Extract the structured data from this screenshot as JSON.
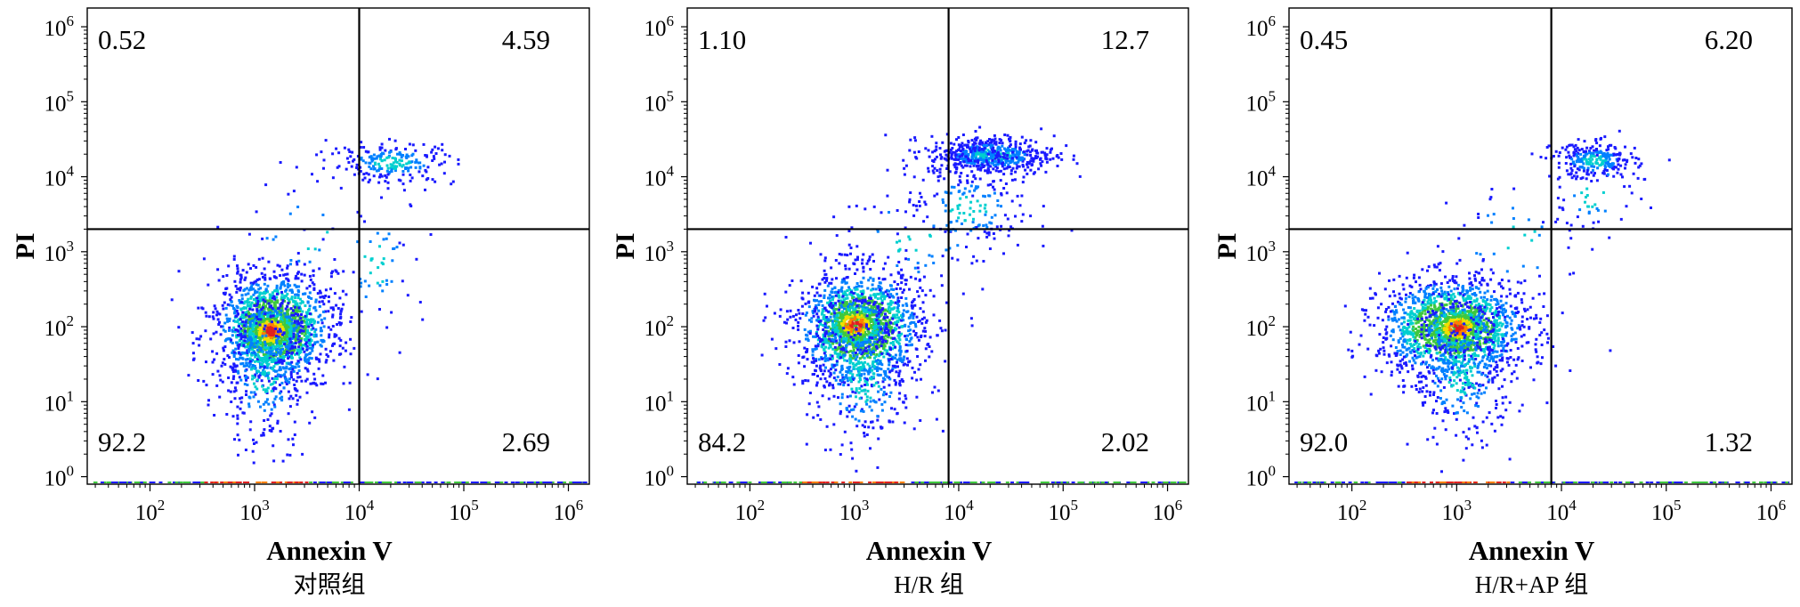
{
  "figure": {
    "y_axis_label": "PI",
    "x_axis_label": "Annexin V"
  },
  "chart_data": [
    {
      "type": "scatter",
      "subtitle": "对照组",
      "xlabel": "Annexin V",
      "ylabel": "PI",
      "x_scale": "log",
      "y_scale": "log",
      "x_ticks": [
        {
          "value": 100,
          "base": "10",
          "exp": "2"
        },
        {
          "value": 1000,
          "base": "10",
          "exp": "3"
        },
        {
          "value": 10000,
          "base": "10",
          "exp": "4"
        },
        {
          "value": 100000,
          "base": "10",
          "exp": "5"
        },
        {
          "value": 1000000,
          "base": "10",
          "exp": "6"
        }
      ],
      "y_ticks": [
        {
          "value": 1,
          "base": "10",
          "exp": "0"
        },
        {
          "value": 10,
          "base": "10",
          "exp": "1"
        },
        {
          "value": 100,
          "base": "10",
          "exp": "2"
        },
        {
          "value": 1000,
          "base": "10",
          "exp": "3"
        },
        {
          "value": 10000,
          "base": "10",
          "exp": "4"
        },
        {
          "value": 100000,
          "base": "10",
          "exp": "5"
        },
        {
          "value": 1000000,
          "base": "10",
          "exp": "6"
        }
      ],
      "quadrant_gate": {
        "x": 10000,
        "y": 2000
      },
      "quadrants": {
        "upper_left": "0.52",
        "upper_right": "4.59",
        "lower_left": "92.2",
        "lower_right": "2.69"
      },
      "colormap": [
        "#1a1aff",
        "#0080ff",
        "#00cfcf",
        "#3ec83e",
        "#f0e000",
        "#ff8000",
        "#e02020"
      ],
      "populations": [
        {
          "cx": 1500,
          "cy": 100,
          "sx": 0.28,
          "sy": 0.36,
          "n": 1500
        },
        {
          "cx": 1400,
          "cy": 90,
          "sx": 0.15,
          "sy": 0.17,
          "n": 500
        },
        {
          "cx": 1200,
          "cy": 25,
          "sx": 0.23,
          "sy": 0.5,
          "n": 320
        },
        {
          "cx": 20000,
          "cy": 16000,
          "sx": 0.3,
          "sy": 0.14,
          "n": 220
        },
        {
          "cx": 14000,
          "cy": 700,
          "sx": 0.25,
          "sy": 0.45,
          "n": 60
        },
        {
          "cx": 3000,
          "cy": 1800,
          "sx": 0.45,
          "sy": 0.4,
          "n": 30
        }
      ]
    },
    {
      "type": "scatter",
      "subtitle": "H/R 组",
      "xlabel": "Annexin V",
      "ylabel": "PI",
      "x_scale": "log",
      "y_scale": "log",
      "x_ticks": [
        {
          "value": 100,
          "base": "10",
          "exp": "2"
        },
        {
          "value": 1000,
          "base": "10",
          "exp": "3"
        },
        {
          "value": 10000,
          "base": "10",
          "exp": "4"
        },
        {
          "value": 100000,
          "base": "10",
          "exp": "5"
        },
        {
          "value": 1000000,
          "base": "10",
          "exp": "6"
        }
      ],
      "y_ticks": [
        {
          "value": 1,
          "base": "10",
          "exp": "0"
        },
        {
          "value": 10,
          "base": "10",
          "exp": "1"
        },
        {
          "value": 100,
          "base": "10",
          "exp": "2"
        },
        {
          "value": 1000,
          "base": "10",
          "exp": "3"
        },
        {
          "value": 10000,
          "base": "10",
          "exp": "4"
        },
        {
          "value": 100000,
          "base": "10",
          "exp": "5"
        },
        {
          "value": 1000000,
          "base": "10",
          "exp": "6"
        }
      ],
      "quadrant_gate": {
        "x": 8000,
        "y": 2000
      },
      "quadrants": {
        "upper_left": "1.10",
        "upper_right": "12.7",
        "lower_left": "84.2",
        "lower_right": "2.02"
      },
      "colormap": [
        "#1a1aff",
        "#0080ff",
        "#00cfcf",
        "#3ec83e",
        "#f0e000",
        "#ff8000",
        "#e02020"
      ],
      "populations": [
        {
          "cx": 1100,
          "cy": 100,
          "sx": 0.3,
          "sy": 0.38,
          "n": 1400
        },
        {
          "cx": 1000,
          "cy": 110,
          "sx": 0.16,
          "sy": 0.17,
          "n": 480
        },
        {
          "cx": 1200,
          "cy": 20,
          "sx": 0.25,
          "sy": 0.5,
          "n": 300
        },
        {
          "cx": 20000,
          "cy": 20000,
          "sx": 0.3,
          "sy": 0.13,
          "n": 520
        },
        {
          "cx": 16000,
          "cy": 20000,
          "sx": 0.12,
          "sy": 0.06,
          "n": 130
        },
        {
          "cx": 12000,
          "cy": 4000,
          "sx": 0.3,
          "sy": 0.3,
          "n": 160
        },
        {
          "cx": 3500,
          "cy": 1500,
          "sx": 0.4,
          "sy": 0.4,
          "n": 70
        }
      ]
    },
    {
      "type": "scatter",
      "subtitle": "H/R+AP 组",
      "xlabel": "Annexin V",
      "ylabel": "PI",
      "x_scale": "log",
      "y_scale": "log",
      "x_ticks": [
        {
          "value": 100,
          "base": "10",
          "exp": "2"
        },
        {
          "value": 1000,
          "base": "10",
          "exp": "3"
        },
        {
          "value": 10000,
          "base": "10",
          "exp": "4"
        },
        {
          "value": 100000,
          "base": "10",
          "exp": "5"
        },
        {
          "value": 1000000,
          "base": "10",
          "exp": "6"
        }
      ],
      "y_ticks": [
        {
          "value": 1,
          "base": "10",
          "exp": "0"
        },
        {
          "value": 10,
          "base": "10",
          "exp": "1"
        },
        {
          "value": 100,
          "base": "10",
          "exp": "2"
        },
        {
          "value": 1000,
          "base": "10",
          "exp": "3"
        },
        {
          "value": 10000,
          "base": "10",
          "exp": "4"
        },
        {
          "value": 100000,
          "base": "10",
          "exp": "5"
        },
        {
          "value": 1000000,
          "base": "10",
          "exp": "6"
        }
      ],
      "quadrant_gate": {
        "x": 8000,
        "y": 2000
      },
      "quadrants": {
        "upper_left": "0.45",
        "upper_right": "6.20",
        "lower_left": "92.0",
        "lower_right": "1.32"
      },
      "colormap": [
        "#1a1aff",
        "#0080ff",
        "#00cfcf",
        "#3ec83e",
        "#f0e000",
        "#ff8000",
        "#e02020"
      ],
      "populations": [
        {
          "cx": 900,
          "cy": 100,
          "sx": 0.35,
          "sy": 0.33,
          "n": 1500
        },
        {
          "cx": 1000,
          "cy": 100,
          "sx": 0.16,
          "sy": 0.16,
          "n": 460
        },
        {
          "cx": 1100,
          "cy": 22,
          "sx": 0.25,
          "sy": 0.45,
          "n": 300
        },
        {
          "cx": 20000,
          "cy": 17000,
          "sx": 0.2,
          "sy": 0.12,
          "n": 260
        },
        {
          "cx": 20000,
          "cy": 6000,
          "sx": 0.25,
          "sy": 0.3,
          "n": 50
        },
        {
          "cx": 3500,
          "cy": 1500,
          "sx": 0.4,
          "sy": 0.4,
          "n": 40
        }
      ]
    }
  ]
}
